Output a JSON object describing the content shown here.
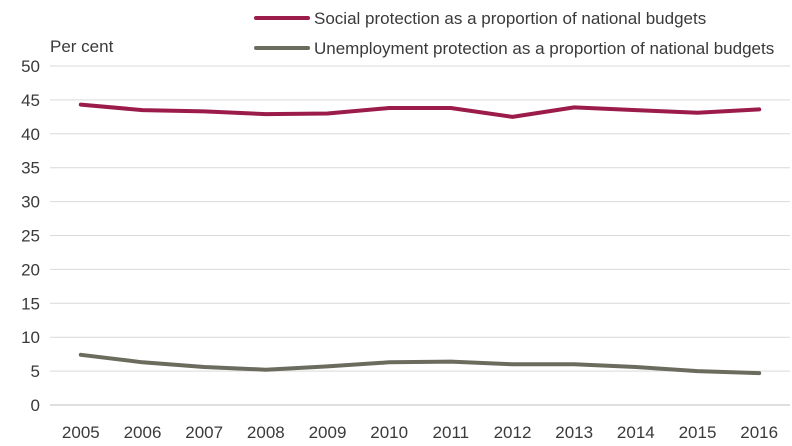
{
  "chart_data": {
    "type": "line",
    "ylabel": "Per cent",
    "x": [
      "2005",
      "2006",
      "2007",
      "2008",
      "2009",
      "2010",
      "2011",
      "2012",
      "2013",
      "2014",
      "2015",
      "2016"
    ],
    "ylim": [
      0,
      50
    ],
    "yticks": [
      0,
      5,
      10,
      15,
      20,
      25,
      30,
      35,
      40,
      45,
      50
    ],
    "grid": true,
    "legend_position": "top",
    "series": [
      {
        "name": "Social protection as a proportion of national budgets",
        "color": "#9b1b4a",
        "values": [
          44.3,
          43.5,
          43.3,
          42.9,
          43.0,
          43.8,
          43.8,
          42.5,
          43.9,
          43.5,
          43.1,
          43.6
        ]
      },
      {
        "name": "Unemployment protection as a proportion of national budgets",
        "color": "#6b6b5e",
        "values": [
          7.4,
          6.3,
          5.6,
          5.2,
          5.7,
          6.3,
          6.4,
          6.0,
          6.0,
          5.6,
          5.0,
          4.7
        ]
      }
    ]
  }
}
